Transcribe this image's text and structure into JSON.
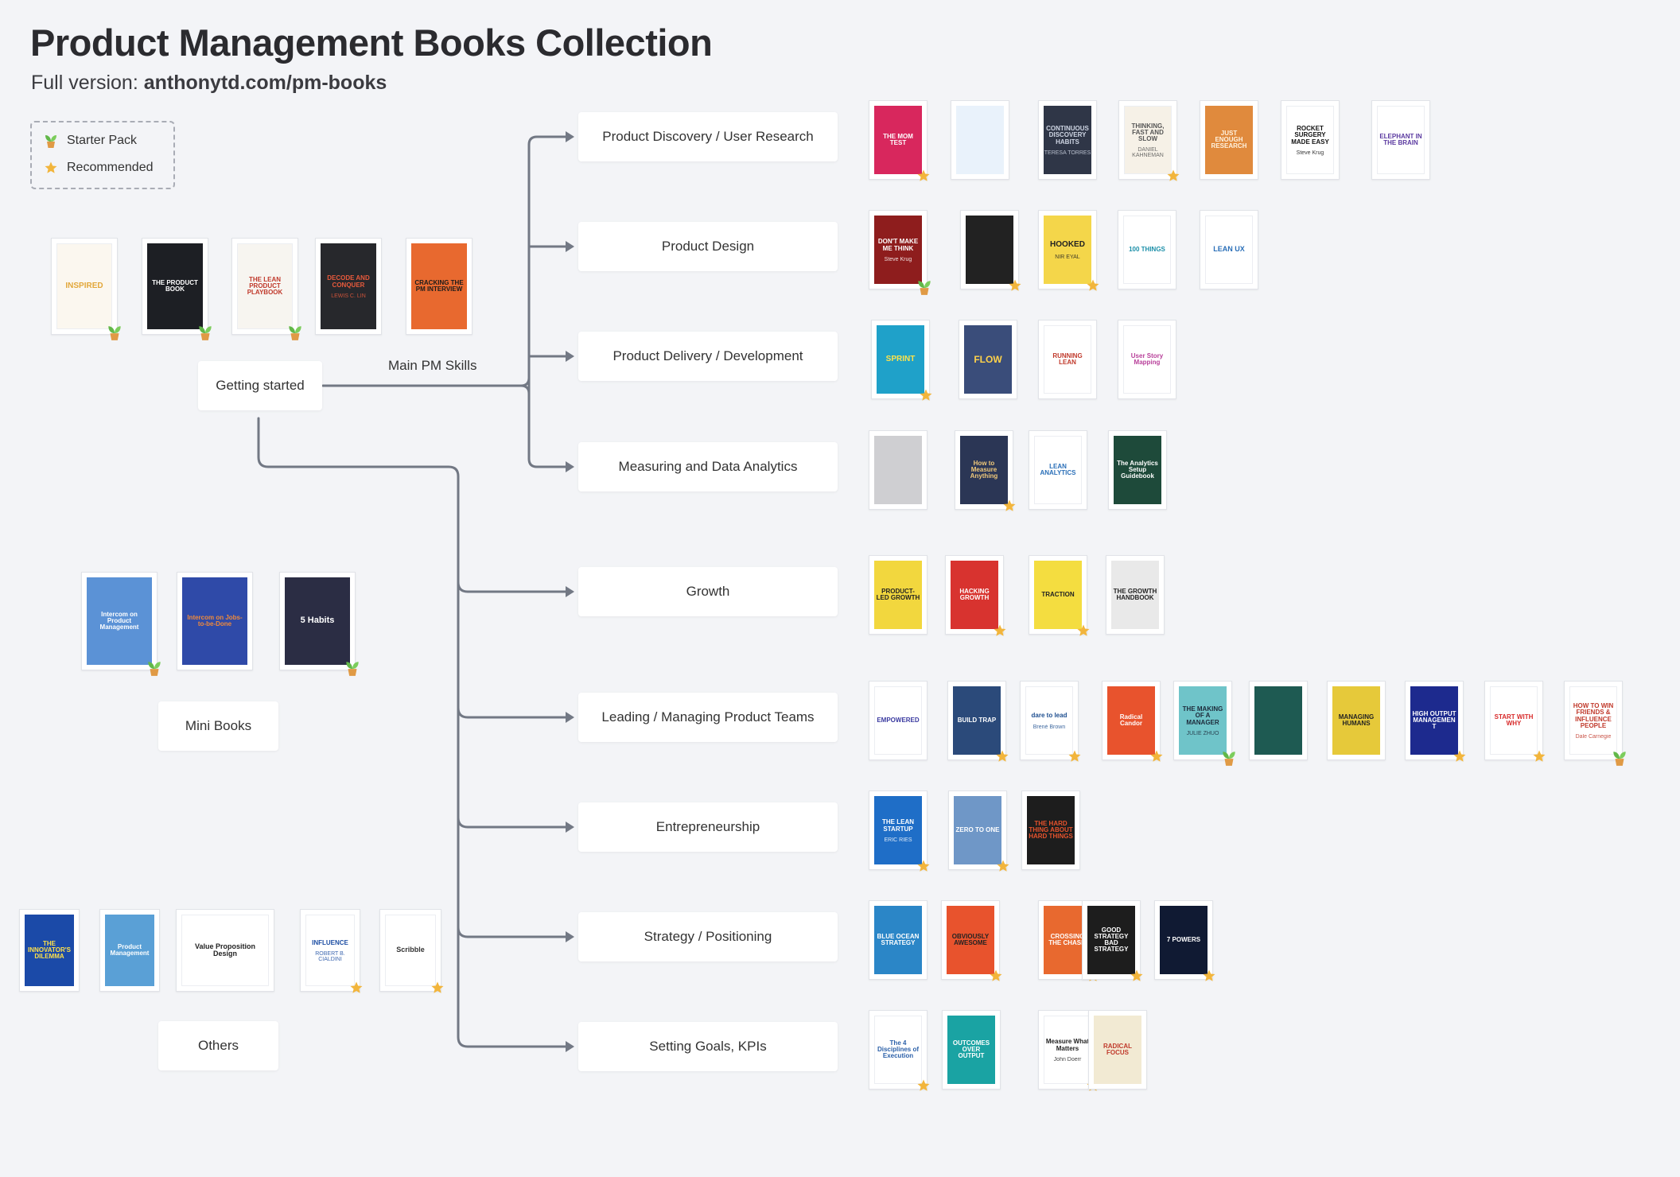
{
  "title": "Product Management Books Collection",
  "subtitle": {
    "prefix": "Full version: ",
    "link": "anthonytd.com/pm-books"
  },
  "legend": [
    {
      "label": "Starter Pack",
      "icon": "sprout-icon"
    },
    {
      "label": "Recommended",
      "icon": "star-icon"
    }
  ],
  "root": {
    "label": "Getting started"
  },
  "edge_label": "Main PM Skills",
  "side_groups": [
    {
      "label": "Mini Books"
    },
    {
      "label": "Others"
    }
  ],
  "categories": [
    {
      "label": "Product Discovery / User Research"
    },
    {
      "label": "Product Design"
    },
    {
      "label": "Product Delivery / Development"
    },
    {
      "label": "Measuring and Data Analytics"
    },
    {
      "label": "Growth"
    },
    {
      "label": "Leading / Managing Product Teams"
    },
    {
      "label": "Entrepreneurship"
    },
    {
      "label": "Strategy / Positioning"
    },
    {
      "label": "Setting Goals, KPIs"
    }
  ],
  "books": {
    "starter": [
      {
        "title": "INSPIRED",
        "author": "",
        "bg": "#fbf7ef",
        "fg": "#e2a73a",
        "badge": "sprout"
      },
      {
        "title": "THE PRODUCT BOOK",
        "author": "",
        "bg": "#1d1f24",
        "fg": "#ffffff",
        "badge": "sprout"
      },
      {
        "title": "THE LEAN PRODUCT PLAYBOOK",
        "author": "",
        "bg": "#f7f5f0",
        "fg": "#c0392b",
        "badge": "sprout"
      },
      {
        "title": "DECODE AND CONQUER",
        "author": "LEWIS C. LIN",
        "bg": "#27282c",
        "fg": "#e85a3c",
        "badge": ""
      },
      {
        "title": "CRACKING THE PM INTERVIEW",
        "author": "",
        "bg": "#e8692f",
        "fg": "#1b1b1b",
        "badge": ""
      }
    ],
    "mini": [
      {
        "title": "Intercom on Product Management",
        "author": "",
        "bg": "#5b92d6",
        "fg": "#ffffff",
        "badge": "sprout"
      },
      {
        "title": "Intercom on Jobs-to-be-Done",
        "author": "",
        "bg": "#2f4aa8",
        "fg": "#f08a3a",
        "badge": ""
      },
      {
        "title": "5 Habits",
        "author": "",
        "bg": "#2b2d44",
        "fg": "#ffffff",
        "badge": "sprout"
      }
    ],
    "others": [
      {
        "title": "THE INNOVATOR'S DILEMMA",
        "author": "",
        "bg": "#1b4aa8",
        "fg": "#ffe14a",
        "badge": ""
      },
      {
        "title": "Product Management",
        "author": "",
        "bg": "#5aa0d6",
        "fg": "#ffffff",
        "badge": ""
      },
      {
        "title": "Value Proposition Design",
        "author": "",
        "bg": "#ffffff",
        "fg": "#222222",
        "badge": ""
      },
      {
        "title": "INFLUENCE",
        "author": "ROBERT B. CIALDINI",
        "bg": "#ffffff",
        "fg": "#1d4ea3",
        "badge": "star"
      },
      {
        "title": "Scribble",
        "author": "",
        "bg": "#ffffff",
        "fg": "#333333",
        "badge": "star"
      }
    ],
    "by_category": [
      [
        {
          "title": "THE MOM TEST",
          "author": "",
          "bg": "#d8275d",
          "fg": "#ffffff",
          "badge": "star"
        },
        {
          "title": "",
          "author": "",
          "bg": "#e9f2fb",
          "fg": "#3d7ec7",
          "badge": ""
        },
        {
          "title": "CONTINUOUS DISCOVERY HABITS",
          "author": "TERESA TORRES",
          "bg": "#2f3647",
          "fg": "#cfd6e4",
          "badge": ""
        },
        {
          "title": "THINKING, FAST AND SLOW",
          "author": "DANIEL KAHNEMAN",
          "bg": "#f6f1e7",
          "fg": "#555555",
          "badge": "star"
        },
        {
          "title": "JUST ENOUGH RESEARCH",
          "author": "",
          "bg": "#e08a3d",
          "fg": "#fff3e0",
          "badge": ""
        },
        {
          "title": "ROCKET SURGERY MADE EASY",
          "author": "Steve Krug",
          "bg": "#ffffff",
          "fg": "#111111",
          "badge": ""
        },
        {
          "title": "ELEPHANT IN THE BRAIN",
          "author": "",
          "bg": "#ffffff",
          "fg": "#5b3aa0",
          "badge": ""
        }
      ],
      [
        {
          "title": "DON'T MAKE ME THINK",
          "author": "Steve Krug",
          "bg": "#8e1d1d",
          "fg": "#ffffff",
          "badge": "sprout"
        },
        {
          "title": "",
          "author": "",
          "bg": "#222222",
          "fg": "#d0d0d0",
          "badge": "star"
        },
        {
          "title": "HOOKED",
          "author": "NIR EYAL",
          "bg": "#f4d64a",
          "fg": "#222222",
          "badge": "star"
        },
        {
          "title": "100 THINGS",
          "author": "",
          "bg": "#ffffff",
          "fg": "#1b8fa8",
          "badge": ""
        },
        {
          "title": "LEAN UX",
          "author": "",
          "bg": "#ffffff",
          "fg": "#2a6fb8",
          "badge": ""
        }
      ],
      [
        {
          "title": "SPRINT",
          "author": "",
          "bg": "#1fa1c9",
          "fg": "#ffe34a",
          "badge": "star"
        },
        {
          "title": "FLOW",
          "author": "",
          "bg": "#3a4d7a",
          "fg": "#ffd24a",
          "badge": ""
        },
        {
          "title": "RUNNING LEAN",
          "author": "",
          "bg": "#ffffff",
          "fg": "#c0392b",
          "badge": ""
        },
        {
          "title": "User Story Mapping",
          "author": "",
          "bg": "#ffffff",
          "fg": "#b8409a",
          "badge": ""
        }
      ],
      [
        {
          "title": "",
          "author": "",
          "bg": "#cfcfd2",
          "fg": "#444444",
          "badge": ""
        },
        {
          "title": "How to Measure Anything",
          "author": "",
          "bg": "#2b3655",
          "fg": "#f0c97a",
          "badge": "star"
        },
        {
          "title": "LEAN ANALYTICS",
          "author": "",
          "bg": "#ffffff",
          "fg": "#2a6fb8",
          "badge": ""
        },
        {
          "title": "The Analytics Setup Guidebook",
          "author": "",
          "bg": "#1e4a3a",
          "fg": "#ffffff",
          "badge": ""
        }
      ],
      [
        {
          "title": "PRODUCT-LED GROWTH",
          "author": "",
          "bg": "#f2d73e",
          "fg": "#222222",
          "badge": ""
        },
        {
          "title": "HACKING GROWTH",
          "author": "",
          "bg": "#d8332f",
          "fg": "#ffffff",
          "badge": "star"
        },
        {
          "title": "TRACTION",
          "author": "",
          "bg": "#f4dd40",
          "fg": "#222222",
          "badge": "star"
        },
        {
          "title": "THE GROWTH HANDBOOK",
          "author": "",
          "bg": "#e9e9e9",
          "fg": "#222222",
          "badge": ""
        }
      ],
      [
        {
          "title": "EMPOWERED",
          "author": "",
          "bg": "#ffffff",
          "fg": "#3a3aa0",
          "badge": ""
        },
        {
          "title": "BUILD TRAP",
          "author": "",
          "bg": "#2b4a7a",
          "fg": "#ffffff",
          "badge": "star"
        },
        {
          "title": "dare to lead",
          "author": "Brené Brown",
          "bg": "#ffffff",
          "fg": "#1d4e8f",
          "badge": "star"
        },
        {
          "title": "Radical Candor",
          "author": "",
          "bg": "#e8532d",
          "fg": "#ffffff",
          "badge": "star"
        },
        {
          "title": "THE MAKING OF A MANAGER",
          "author": "JULIE ZHUO",
          "bg": "#6fc4c9",
          "fg": "#1d2a3a",
          "badge": "sprout"
        },
        {
          "title": "",
          "author": "",
          "bg": "#1e5a52",
          "fg": "#ff6b5b",
          "badge": ""
        },
        {
          "title": "MANAGING HUMANS",
          "author": "",
          "bg": "#e6c93a",
          "fg": "#222222",
          "badge": ""
        },
        {
          "title": "HIGH OUTPUT MANAGEMENT",
          "author": "",
          "bg": "#1d2a8e",
          "fg": "#ffffff",
          "badge": "star"
        },
        {
          "title": "START WITH WHY",
          "author": "",
          "bg": "#ffffff",
          "fg": "#d82a2a",
          "badge": "star"
        },
        {
          "title": "HOW TO WIN FRIENDS & INFLUENCE PEOPLE",
          "author": "Dale Carnegie",
          "bg": "#ffffff",
          "fg": "#c0392b",
          "badge": "sprout"
        }
      ],
      [
        {
          "title": "THE LEAN STARTUP",
          "author": "ERIC RIES",
          "bg": "#1f6ec7",
          "fg": "#ffffff",
          "badge": "star"
        },
        {
          "title": "ZERO TO ONE",
          "author": "",
          "bg": "#6f97c7",
          "fg": "#ffffff",
          "badge": "star"
        },
        {
          "title": "THE HARD THING ABOUT HARD THINGS",
          "author": "",
          "bg": "#1d1d1d",
          "fg": "#e8532d",
          "badge": ""
        }
      ],
      [
        {
          "title": "BLUE OCEAN STRATEGY",
          "author": "",
          "bg": "#2b86c7",
          "fg": "#ffffff",
          "badge": ""
        },
        {
          "title": "OBVIOUSLY AWESOME",
          "author": "",
          "bg": "#e8532d",
          "fg": "#222222",
          "badge": "star"
        },
        {
          "title": "CROSSING THE CHASM",
          "author": "",
          "bg": "#e8692f",
          "fg": "#ffffff",
          "badge": "star"
        },
        {
          "title": "GOOD STRATEGY BAD STRATEGY",
          "author": "",
          "bg": "#1d1d1d",
          "fg": "#ffffff",
          "badge": "star"
        },
        {
          "title": "7 POWERS",
          "author": "",
          "bg": "#101a33",
          "fg": "#ffffff",
          "badge": "star"
        }
      ],
      [
        {
          "title": "The 4 Disciplines of Execution",
          "author": "",
          "bg": "#ffffff",
          "fg": "#2a5fa8",
          "badge": "star"
        },
        {
          "title": "OUTCOMES OVER OUTPUT",
          "author": "",
          "bg": "#1aa3a3",
          "fg": "#ffffff",
          "badge": ""
        },
        {
          "title": "Measure What Matters",
          "author": "John Doerr",
          "bg": "#ffffff",
          "fg": "#222222",
          "badge": "star"
        },
        {
          "title": "RADICAL FOCUS",
          "author": "",
          "bg": "#f2ead3",
          "fg": "#c0392b",
          "badge": ""
        }
      ]
    ]
  }
}
